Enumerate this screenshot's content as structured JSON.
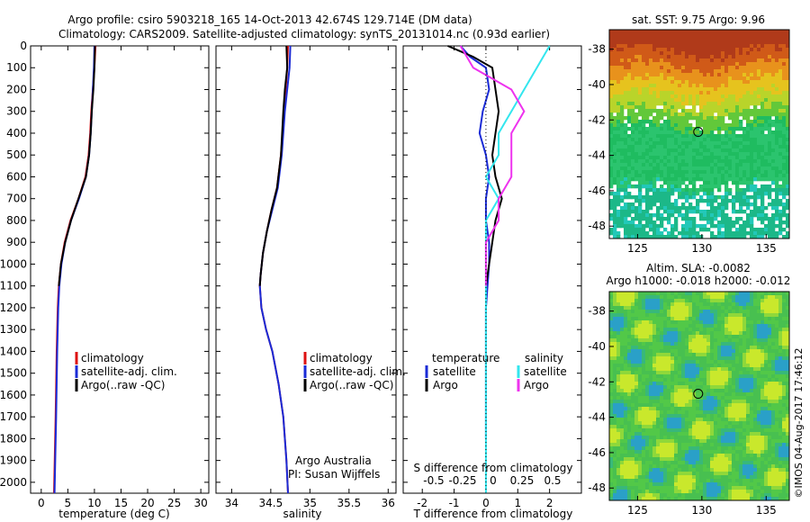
{
  "header": {
    "title1": "Argo profile: csiro 5903218_165 14-Oct-2013 42.674S 129.714E (DM data)",
    "title2": "Climatology: CARS2009. Satellite-adjusted climatology: synTS_20131014.nc (0.93d earlier)"
  },
  "colors": {
    "climatology": "#dd1111",
    "satellite": "#1a2bd6",
    "argo": "#000000",
    "sat_salinity": "#33e6ee",
    "argo_salinity": "#ee33ee"
  },
  "chart_data": [
    {
      "type": "line",
      "name": "temperature-profile",
      "xlabel": "temperature (deg C)",
      "ylabel": "",
      "xlim": [
        -2,
        31.5
      ],
      "ylim": [
        0,
        2050
      ],
      "xticks": [
        0,
        5,
        10,
        15,
        20,
        25,
        30
      ],
      "yticks": [
        0,
        100,
        200,
        300,
        400,
        500,
        600,
        700,
        800,
        900,
        1000,
        1100,
        1200,
        1300,
        1400,
        1500,
        1600,
        1700,
        1800,
        1900,
        2000
      ],
      "legend": [
        "climatology",
        "satellite-adj. clim.",
        "Argo(..raw -QC)"
      ],
      "series": [
        {
          "name": "climatology",
          "x": [
            10.2,
            10.0,
            9.7,
            9.4,
            9.2,
            8.9,
            8.3,
            7.0,
            5.5,
            4.4,
            3.7,
            3.3,
            3.1,
            2.9,
            2.7,
            2.4
          ],
          "y": [
            0,
            100,
            200,
            300,
            400,
            500,
            600,
            700,
            800,
            900,
            1000,
            1100,
            1200,
            1400,
            1700,
            2050
          ]
        },
        {
          "name": "satellite-adj. clim.",
          "x": [
            10.0,
            9.9,
            9.7,
            9.5,
            9.3,
            9.0,
            8.4,
            7.1,
            5.6,
            4.5,
            3.8,
            3.4,
            3.2,
            3.0,
            2.8,
            2.5
          ],
          "y": [
            0,
            100,
            200,
            300,
            400,
            500,
            600,
            700,
            800,
            900,
            1000,
            1100,
            1200,
            1400,
            1700,
            2050
          ]
        },
        {
          "name": "Argo(..raw -QC)",
          "x": [
            10.1,
            10.0,
            9.8,
            9.5,
            9.3,
            9.0,
            8.4,
            7.0,
            5.6,
            4.5,
            3.7,
            3.3
          ],
          "y": [
            0,
            100,
            200,
            300,
            400,
            500,
            600,
            700,
            800,
            900,
            1000,
            1100
          ]
        }
      ]
    },
    {
      "type": "line",
      "name": "salinity-profile",
      "xlabel": "salinity",
      "xlim": [
        33.8,
        36.1
      ],
      "ylim": [
        0,
        2050
      ],
      "xticks": [
        34,
        34.5,
        35,
        35.5,
        36
      ],
      "legend": [
        "climatology",
        "satellite-adj. clim.",
        "Argo(..raw -QC)"
      ],
      "annotation": [
        "Argo Australia",
        "PI: Susan Wijffels"
      ],
      "series": [
        {
          "name": "climatology",
          "x": [
            34.72,
            34.71,
            34.69,
            34.67,
            34.63,
            34.58,
            34.51,
            34.45,
            34.4,
            34.37,
            34.36,
            34.38,
            34.44,
            34.52,
            34.6,
            34.66,
            34.7,
            34.72
          ],
          "y": [
            0,
            100,
            200,
            300,
            500,
            650,
            750,
            850,
            950,
            1050,
            1100,
            1200,
            1300,
            1400,
            1550,
            1700,
            1900,
            2050
          ]
        },
        {
          "name": "satellite-adj. clim.",
          "x": [
            34.75,
            34.74,
            34.71,
            34.68,
            34.64,
            34.59,
            34.52,
            34.45,
            34.4,
            34.37,
            34.36,
            34.38,
            34.44,
            34.52,
            34.6,
            34.66,
            34.7,
            34.72
          ],
          "y": [
            0,
            100,
            200,
            300,
            500,
            650,
            750,
            850,
            950,
            1050,
            1100,
            1200,
            1300,
            1400,
            1550,
            1700,
            1900,
            2050
          ]
        },
        {
          "name": "Argo(..raw -QC)",
          "x": [
            34.7,
            34.71,
            34.68,
            34.66,
            34.63,
            34.58,
            34.51,
            34.45,
            34.4,
            34.37,
            34.36
          ],
          "y": [
            0,
            100,
            200,
            300,
            500,
            650,
            750,
            850,
            950,
            1050,
            1100
          ]
        }
      ]
    },
    {
      "type": "line",
      "name": "difference-profile",
      "xlabel": "T difference from climatology",
      "xlabel_top": "S difference from climatology",
      "xlim": [
        -2.6,
        3.0
      ],
      "ylim": [
        0,
        2050
      ],
      "xticks": [
        -2,
        -1,
        0,
        1,
        2
      ],
      "xticks_top": [
        "-0.5",
        "-0.25",
        "0",
        "0.25",
        "0.5"
      ],
      "legend": {
        "temperature": [
          "satellite",
          "Argo"
        ],
        "salinity": [
          "satellite",
          "Argo"
        ]
      },
      "legend_titles": [
        "temperature",
        "salinity"
      ],
      "series": [
        {
          "name": "temperature satellite",
          "x": [
            -0.8,
            -0.5,
            0.0,
            0.1,
            -0.1,
            -0.2,
            0.0,
            0.1,
            0.0,
            0.0,
            0.1,
            0.1,
            0.0,
            0.0,
            0.0,
            0.0
          ],
          "y": [
            0,
            50,
            100,
            200,
            300,
            400,
            500,
            600,
            700,
            800,
            900,
            1000,
            1200,
            1400,
            1600,
            1800
          ]
        },
        {
          "name": "temperature Argo",
          "x": [
            -1.2,
            -0.4,
            0.2,
            0.3,
            0.4,
            0.3,
            0.2,
            0.3,
            0.5,
            0.3,
            0.2,
            0.1,
            0.0
          ],
          "y": [
            0,
            50,
            100,
            200,
            300,
            400,
            500,
            600,
            700,
            800,
            900,
            1000,
            1100
          ]
        },
        {
          "name": "salinity satellite",
          "x": [
            0.5,
            0.4,
            0.3,
            0.2,
            0.1,
            0.1,
            0.0,
            0.1,
            0.0,
            0.0,
            0.0,
            0.0,
            0.0,
            0.0,
            0.0
          ],
          "y": [
            0,
            100,
            200,
            300,
            400,
            500,
            600,
            700,
            800,
            1000,
            1200,
            1400,
            1600,
            1800,
            2050
          ]
        },
        {
          "name": "salinity Argo",
          "x": [
            -0.2,
            -0.1,
            0.2,
            0.3,
            0.2,
            0.2,
            0.2,
            0.1,
            0.1,
            0.0,
            0.0,
            0.0
          ],
          "y": [
            0,
            100,
            200,
            300,
            400,
            500,
            600,
            700,
            800,
            900,
            1000,
            1100
          ]
        }
      ]
    },
    {
      "type": "heatmap",
      "name": "sst-map",
      "title": "sat. SST: 9.75 Argo: 9.96",
      "xlim": [
        122.8,
        136.8
      ],
      "ylim": [
        -48.7,
        -36.9
      ],
      "xticks": [
        125,
        130,
        135
      ],
      "yticks": [
        -38,
        -40,
        -42,
        -44,
        -46,
        -48
      ],
      "marker": {
        "lon": 129.714,
        "lat": -42.674
      }
    },
    {
      "type": "heatmap",
      "name": "sla-map",
      "title": [
        "Altim. SLA: -0.0082",
        "Argo h1000: -0.018 h2000: -0.012"
      ],
      "xlim": [
        122.8,
        136.8
      ],
      "ylim": [
        -48.7,
        -36.9
      ],
      "xticks": [
        125,
        130,
        135
      ],
      "yticks": [
        -38,
        -40,
        -42,
        -44,
        -46,
        -48
      ],
      "marker": {
        "lon": 129.714,
        "lat": -42.674
      }
    }
  ],
  "footer": {
    "credit": "©IMOS 04-Aug-2017 17:46:12"
  }
}
